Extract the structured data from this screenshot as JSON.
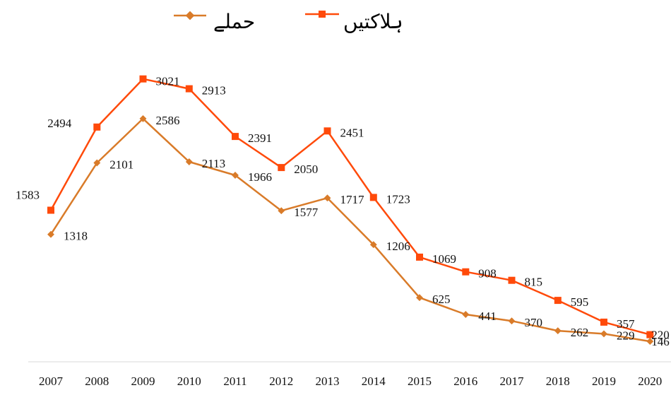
{
  "chart_data": {
    "type": "line",
    "categories": [
      "2007",
      "2008",
      "2009",
      "2010",
      "2011",
      "2012",
      "2013",
      "2014",
      "2015",
      "2016",
      "2017",
      "2018",
      "2019",
      "2020"
    ],
    "series": [
      {
        "name": "ہلاکتیں",
        "color": "#ff4a0a",
        "marker": "square",
        "values": [
          1583,
          2494,
          3021,
          2913,
          2391,
          2050,
          2451,
          1723,
          1069,
          908,
          815,
          595,
          357,
          220
        ]
      },
      {
        "name": "حملے",
        "color": "#d97b29",
        "marker": "diamond",
        "values": [
          1318,
          2101,
          2586,
          2113,
          1966,
          1577,
          1717,
          1206,
          625,
          441,
          370,
          262,
          229,
          146
        ]
      }
    ],
    "title": "",
    "xlabel": "",
    "ylabel": "",
    "ylim": [
      0,
      3150
    ],
    "grid": false,
    "legend": "top-center"
  }
}
